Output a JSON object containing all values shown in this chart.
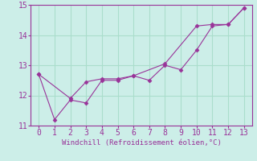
{
  "xlabel": "Windchill (Refroidissement éolien,°C)",
  "xlim": [
    -0.5,
    13.5
  ],
  "ylim": [
    11,
    15
  ],
  "xticks": [
    0,
    1,
    2,
    3,
    4,
    5,
    6,
    7,
    8,
    9,
    10,
    11,
    12,
    13
  ],
  "yticks": [
    11,
    12,
    13,
    14,
    15
  ],
  "bg_color": "#cceee8",
  "line_color": "#993399",
  "grid_color": "#aaddcc",
  "series1_x": [
    0,
    1,
    2,
    3,
    4,
    5,
    6,
    7,
    8,
    9,
    10,
    11,
    12,
    13
  ],
  "series1_y": [
    12.7,
    11.2,
    11.85,
    11.75,
    12.5,
    12.5,
    12.65,
    12.5,
    13.0,
    12.85,
    13.5,
    14.3,
    14.35,
    14.9
  ],
  "series2_x": [
    0,
    2,
    3,
    4,
    5,
    6,
    8,
    10,
    11,
    12,
    13
  ],
  "series2_y": [
    12.7,
    11.9,
    12.45,
    12.55,
    12.55,
    12.65,
    13.05,
    14.3,
    14.35,
    14.35,
    14.9
  ],
  "tick_fontsize": 7,
  "xlabel_fontsize": 6.5
}
